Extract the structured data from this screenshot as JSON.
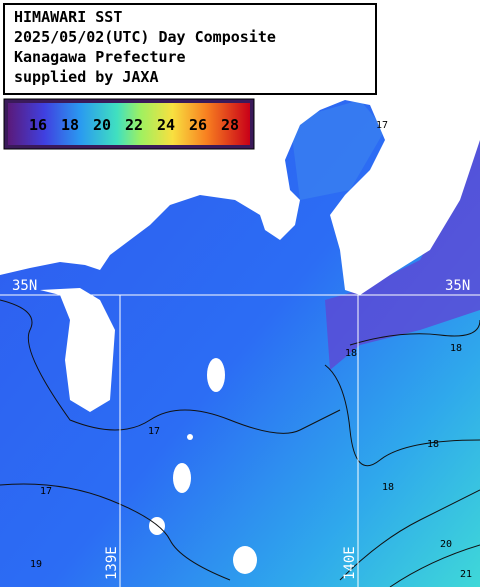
{
  "title_box": {
    "lines": [
      "HIMAWARI SST",
      "2025/05/02(UTC) Day Composite",
      "Kanagawa Prefecture",
      "supplied by JAXA"
    ]
  },
  "colorbar": {
    "labels": [
      16,
      18,
      20,
      22,
      24,
      26,
      28
    ]
  },
  "grid_labels": {
    "lat_left": "35N",
    "lat_right": "35N",
    "lon_west": "139E",
    "lon_east": "140E"
  },
  "contour_labels": [
    "17",
    "17",
    "17",
    "18",
    "18",
    "18",
    "18",
    "19",
    "20",
    "21"
  ]
}
